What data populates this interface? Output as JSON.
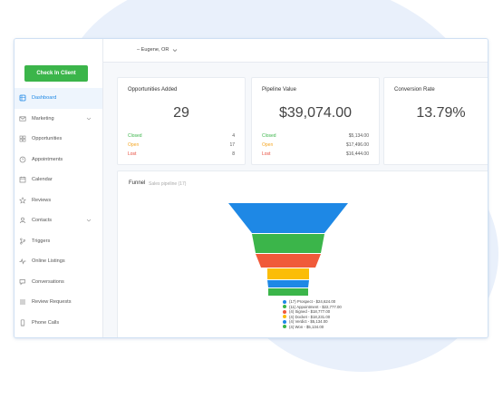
{
  "sidebar": {
    "checkin_label": "Check In Client",
    "items": [
      {
        "label": "Dashboard",
        "icon": "dashboard-icon",
        "active": true
      },
      {
        "label": "Marketing",
        "icon": "envelope-icon",
        "chevron": true
      },
      {
        "label": "Opportunities",
        "icon": "grid-icon"
      },
      {
        "label": "Appointments",
        "icon": "clock-icon"
      },
      {
        "label": "Calendar",
        "icon": "calendar-icon"
      },
      {
        "label": "Reviews",
        "icon": "star-icon"
      },
      {
        "label": "Contacts",
        "icon": "person-icon",
        "chevron": true
      },
      {
        "label": "Triggers",
        "icon": "branch-icon"
      },
      {
        "label": "Online Listings",
        "icon": "pulse-icon"
      },
      {
        "label": "Conversations",
        "icon": "chat-icon"
      },
      {
        "label": "Review Requests",
        "icon": "list-icon"
      },
      {
        "label": "Phone Calls",
        "icon": "phone-icon"
      }
    ]
  },
  "header": {
    "location": "– Eugene, OR"
  },
  "stats": {
    "opportunities": {
      "title": "Opportunities Added",
      "value": "29",
      "rows": [
        {
          "label": "Closed",
          "value": "4"
        },
        {
          "label": "Open",
          "value": "17"
        },
        {
          "label": "Lost",
          "value": "8"
        }
      ]
    },
    "pipeline": {
      "title": "Pipeline Value",
      "value": "$39,074.00",
      "rows": [
        {
          "label": "Closed",
          "value": "$5,134.00"
        },
        {
          "label": "Open",
          "value": "$17,496.00"
        },
        {
          "label": "Lost",
          "value": "$16,444.00"
        }
      ]
    },
    "conversion": {
      "title": "Conversion Rate",
      "value": "13.79%"
    }
  },
  "funnel": {
    "title": "Funnel",
    "subtitle": "Sales pipeline (17)"
  },
  "chart_data": {
    "type": "funnel",
    "stages": [
      {
        "label": "(17) Prospect - $24,624.00",
        "count": 17,
        "value": 24624,
        "color": "#1e88e5"
      },
      {
        "label": "(11) Appointment - $22,777.00",
        "count": 11,
        "value": 22777,
        "color": "#3bb54a"
      },
      {
        "label": "(4) Signed - $18,777.00",
        "count": 4,
        "value": 18777,
        "color": "#f05a3a"
      },
      {
        "label": "(4) Docket - $18,231.00",
        "count": 4,
        "value": 18231,
        "color": "#fbbd08"
      },
      {
        "label": "(4) Verdict - $5,134.00",
        "count": 4,
        "value": 5134,
        "color": "#1e88e5"
      },
      {
        "label": "(4) Won - $5,134.00",
        "count": 4,
        "value": 5134,
        "color": "#3bb54a"
      }
    ]
  }
}
